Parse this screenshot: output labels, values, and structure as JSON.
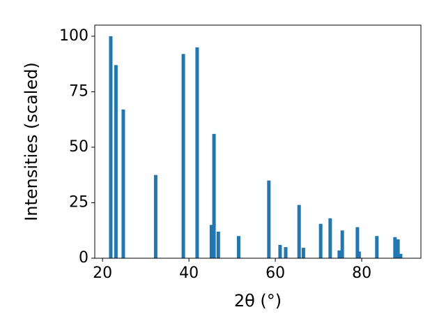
{
  "chart_data": {
    "type": "bar",
    "x_label": "2θ (°)",
    "y_label": "Intensities (scaled)",
    "x": [
      21.9,
      23.1,
      24.8,
      32.3,
      38.7,
      41.9,
      45.2,
      45.8,
      46.8,
      51.5,
      58.5,
      61.1,
      62.4,
      65.5,
      66.5,
      70.5,
      72.7,
      74.8,
      75.5,
      79.0,
      79.4,
      83.5,
      87.7,
      88.4,
      89.0
    ],
    "values": [
      100,
      87,
      67,
      37.5,
      92,
      95,
      15,
      56,
      12,
      10,
      35,
      6,
      5,
      24,
      4.7,
      15.5,
      18,
      3.5,
      12.5,
      14,
      3,
      10,
      9.5,
      8.5,
      2
    ],
    "color": "#1f77b4",
    "xlim": [
      18.2,
      93.7
    ],
    "xticks": [
      20,
      40,
      60,
      80
    ],
    "ylim": [
      0,
      105
    ],
    "yticks": [
      0,
      25,
      50,
      75,
      100
    ]
  }
}
